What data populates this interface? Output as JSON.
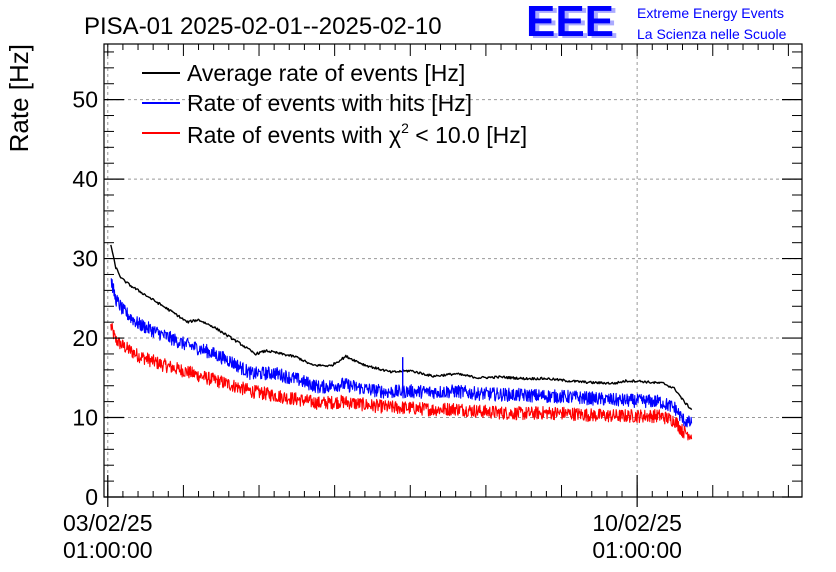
{
  "chart_data": {
    "type": "line",
    "title": "PISA-01 2025-02-01--2025-02-10",
    "xlabel": "",
    "ylabel": "Rate [Hz]",
    "ylim": [
      0,
      57
    ],
    "yticks": [
      0,
      10,
      20,
      30,
      40,
      50
    ],
    "xlim": [
      -0.05,
      9.18
    ],
    "xticks": [
      {
        "value": 0,
        "line1": "03/02/25",
        "line2": "01:00:00"
      },
      {
        "value": 7,
        "line1": "10/02/25",
        "line2": "01:00:00"
      }
    ],
    "grid": true,
    "legend_position": "top-left",
    "series": [
      {
        "name": "Average rate of events [Hz]",
        "color": "#000000",
        "noise": 0.15,
        "x": [
          0.04,
          0.1,
          0.18,
          0.3,
          0.5,
          0.7,
          0.9,
          1.05,
          1.2,
          1.4,
          1.55,
          1.75,
          1.95,
          2.1,
          2.3,
          2.5,
          2.7,
          2.95,
          3.15,
          3.4,
          3.55,
          3.75,
          4.0,
          4.3,
          4.6,
          4.9,
          5.2,
          5.5,
          5.8,
          6.1,
          6.4,
          6.7,
          6.85,
          7.0,
          7.2,
          7.35,
          7.5,
          7.62,
          7.72
        ],
        "y": [
          31.8,
          29.0,
          27.5,
          26.6,
          25.4,
          24.2,
          23.0,
          22.0,
          22.3,
          21.4,
          20.5,
          19.3,
          18.0,
          18.4,
          18.0,
          17.6,
          16.6,
          16.5,
          17.7,
          16.6,
          16.2,
          15.7,
          15.9,
          15.2,
          15.5,
          15.0,
          15.1,
          14.9,
          14.9,
          14.6,
          14.4,
          14.3,
          14.6,
          14.6,
          14.4,
          14.3,
          13.6,
          12.0,
          11.0
        ]
      },
      {
        "name": "Rate of events with hits [Hz]",
        "color": "#0000ff",
        "noise": 0.85,
        "x": [
          0.04,
          0.1,
          0.2,
          0.4,
          0.7,
          1.0,
          1.3,
          1.6,
          1.9,
          2.2,
          2.5,
          2.8,
          3.1,
          3.4,
          3.7,
          4.0,
          4.3,
          4.6,
          4.9,
          5.2,
          5.5,
          5.8,
          6.1,
          6.4,
          6.7,
          7.0,
          7.3,
          7.5,
          7.6,
          7.72
        ],
        "y": [
          27.5,
          25.0,
          23.5,
          21.8,
          20.5,
          19.3,
          18.4,
          17.2,
          15.5,
          15.6,
          14.8,
          13.8,
          14.2,
          13.6,
          13.2,
          13.3,
          13.2,
          13.3,
          13.0,
          12.9,
          12.8,
          12.7,
          12.6,
          12.4,
          12.2,
          12.1,
          12.0,
          11.2,
          9.8,
          9.2
        ]
      },
      {
        "name": "Rate of events with χ² < 10.0 [Hz]",
        "color": "#ff0000",
        "noise": 0.85,
        "x": [
          0.04,
          0.1,
          0.2,
          0.4,
          0.7,
          1.0,
          1.3,
          1.6,
          1.9,
          2.2,
          2.5,
          2.8,
          3.1,
          3.4,
          3.7,
          4.0,
          4.3,
          4.6,
          4.9,
          5.2,
          5.5,
          5.8,
          6.1,
          6.4,
          6.7,
          7.0,
          7.3,
          7.5,
          7.6,
          7.72
        ],
        "y": [
          21.5,
          19.8,
          19.0,
          17.8,
          16.7,
          15.9,
          15.0,
          14.2,
          13.3,
          12.8,
          12.3,
          11.8,
          12.0,
          11.6,
          11.3,
          11.2,
          11.0,
          11.1,
          10.8,
          10.6,
          10.5,
          10.6,
          10.5,
          10.3,
          10.2,
          10.2,
          10.2,
          9.6,
          8.3,
          7.8
        ]
      }
    ]
  },
  "branding": {
    "logo_text": "EEE",
    "logo_color": "#0000ff",
    "line1": "Extreme Energy Events",
    "line2": "La Scienza nelle Scuole"
  },
  "legend": {
    "entry1": "Average rate of events [Hz]",
    "entry2": "Rate of events with hits [Hz]",
    "entry3_prefix": "Rate of events with ",
    "entry3_symbol": "χ",
    "entry3_sup": "2",
    "entry3_suffix": " < 10.0 [Hz]"
  }
}
